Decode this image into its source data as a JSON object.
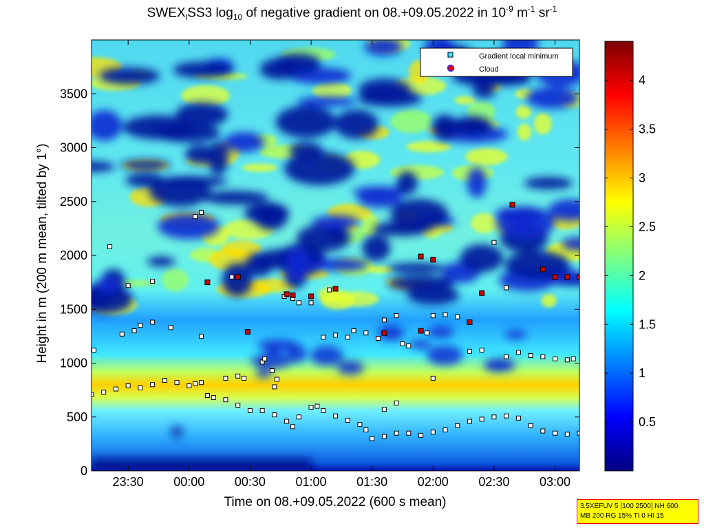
{
  "title": {
    "prefix": "SWEX",
    "sub1": "l",
    "mid1": "SS3 log",
    "sub2": "10",
    "mid2": " of negative gradient on 08.+09.05.2022 in 10",
    "sup1": "-9",
    "mid3": " m",
    "sup2": "-1",
    "mid4": " sr",
    "sup3": "-1"
  },
  "info_box": {
    "line1": "3.5XEFUV 5 [100 2500] NH 600",
    "line2": "MB 200 RG 15% TI 0 HI 15"
  },
  "colors": {
    "background_low": "#00008f",
    "gradient_min_marker": "#ffffff",
    "cloud_marker": "#cc0000",
    "colormap": "jet",
    "info_box_bg": "#ffff00",
    "info_box_border": "#ff0000"
  },
  "chart_data": {
    "type": "heatmap",
    "xlabel": "Time on 08.+09.05.2022 (600 s mean)",
    "ylabel": "Height in m (200 m mean, tilted by 1°)",
    "x_unit": "hours since 00:00 on 09.05.2022",
    "x_range": [
      -0.8,
      3.2
    ],
    "x_ticks": [
      {
        "value": -0.5,
        "label": "23:30"
      },
      {
        "value": 0.0,
        "label": "00:00"
      },
      {
        "value": 0.5,
        "label": "00:30"
      },
      {
        "value": 1.0,
        "label": "01:00"
      },
      {
        "value": 1.5,
        "label": "01:30"
      },
      {
        "value": 2.0,
        "label": "02:00"
      },
      {
        "value": 2.5,
        "label": "02:30"
      },
      {
        "value": 3.0,
        "label": "03:00"
      }
    ],
    "ylim": [
      0,
      4000
    ],
    "y_ticks": [
      0,
      500,
      1000,
      1500,
      2000,
      2500,
      3000,
      3500
    ],
    "colorbar": {
      "range": [
        0,
        4.4
      ],
      "ticks": [
        0.5,
        1,
        1.5,
        2,
        2.5,
        3,
        3.5,
        4
      ]
    },
    "legend": {
      "placement": "top-right",
      "entries": [
        {
          "label": "Gradient local minimum",
          "marker": "square"
        },
        {
          "label": "Cloud",
          "marker": "circle"
        }
      ]
    },
    "series": [
      {
        "name": "Gradient local minimum",
        "description": "main boundary layer trace",
        "points": [
          [
            -0.8,
            710
          ],
          [
            -0.7,
            730
          ],
          [
            -0.6,
            760
          ],
          [
            -0.5,
            790
          ],
          [
            -0.4,
            770
          ],
          [
            -0.3,
            800
          ],
          [
            -0.2,
            840
          ],
          [
            -0.1,
            820
          ],
          [
            0.0,
            790
          ],
          [
            0.05,
            810
          ],
          [
            0.1,
            820
          ],
          [
            0.15,
            700
          ],
          [
            0.2,
            680
          ],
          [
            0.3,
            660
          ],
          [
            0.4,
            610
          ],
          [
            0.5,
            560
          ],
          [
            0.6,
            560
          ],
          [
            0.7,
            520
          ],
          [
            0.8,
            460
          ],
          [
            0.85,
            410
          ],
          [
            0.9,
            500
          ],
          [
            1.0,
            590
          ],
          [
            1.05,
            600
          ],
          [
            1.1,
            560
          ],
          [
            1.2,
            510
          ],
          [
            1.3,
            470
          ],
          [
            1.4,
            430
          ],
          [
            1.45,
            380
          ],
          [
            1.5,
            300
          ],
          [
            1.6,
            320
          ],
          [
            1.7,
            350
          ],
          [
            1.8,
            350
          ],
          [
            1.9,
            330
          ],
          [
            2.0,
            360
          ],
          [
            2.1,
            380
          ],
          [
            2.2,
            420
          ],
          [
            2.3,
            460
          ],
          [
            2.4,
            480
          ],
          [
            2.5,
            500
          ],
          [
            2.6,
            510
          ],
          [
            2.7,
            490
          ],
          [
            2.8,
            420
          ],
          [
            2.9,
            370
          ],
          [
            3.0,
            350
          ],
          [
            3.1,
            340
          ],
          [
            3.2,
            350
          ]
        ]
      },
      {
        "name": "Gradient local minimum",
        "description": "upper layer points",
        "points": [
          [
            -0.78,
            1120
          ],
          [
            -0.55,
            1270
          ],
          [
            -0.45,
            1300
          ],
          [
            -0.4,
            1350
          ],
          [
            -0.3,
            1380
          ],
          [
            -0.15,
            1330
          ],
          [
            0.1,
            1250
          ],
          [
            0.3,
            860
          ],
          [
            0.4,
            880
          ],
          [
            0.45,
            860
          ],
          [
            0.6,
            1010
          ],
          [
            0.62,
            1040
          ],
          [
            0.68,
            930
          ],
          [
            0.72,
            850
          ],
          [
            0.7,
            780
          ],
          [
            0.78,
            1620
          ],
          [
            0.85,
            1600
          ],
          [
            0.9,
            1560
          ],
          [
            1.0,
            1560
          ],
          [
            1.1,
            1240
          ],
          [
            1.2,
            1260
          ],
          [
            1.3,
            1240
          ],
          [
            1.35,
            1300
          ],
          [
            1.45,
            1280
          ],
          [
            1.55,
            1230
          ],
          [
            1.7,
            1440
          ],
          [
            1.75,
            1180
          ],
          [
            1.8,
            1160
          ],
          [
            1.95,
            1280
          ],
          [
            2.0,
            1440
          ],
          [
            2.1,
            1450
          ],
          [
            2.2,
            1430
          ],
          [
            2.3,
            1110
          ],
          [
            2.4,
            1120
          ],
          [
            2.6,
            1060
          ],
          [
            2.7,
            1100
          ],
          [
            2.8,
            1070
          ],
          [
            2.9,
            1060
          ],
          [
            3.0,
            1040
          ],
          [
            3.1,
            1030
          ],
          [
            3.15,
            1040
          ],
          [
            -0.65,
            2080
          ],
          [
            -0.5,
            1720
          ],
          [
            -0.3,
            1760
          ],
          [
            0.05,
            2360
          ],
          [
            0.1,
            2400
          ],
          [
            0.35,
            1800
          ],
          [
            1.15,
            1680
          ],
          [
            2.5,
            2120
          ],
          [
            2.6,
            1700
          ],
          [
            1.6,
            570
          ],
          [
            1.7,
            630
          ],
          [
            2.0,
            860
          ],
          [
            1.6,
            1400
          ]
        ]
      },
      {
        "name": "Cloud",
        "points": [
          [
            0.15,
            1750
          ],
          [
            0.4,
            1800
          ],
          [
            0.48,
            1290
          ],
          [
            0.8,
            1640
          ],
          [
            0.85,
            1630
          ],
          [
            1.0,
            1620
          ],
          [
            1.2,
            1690
          ],
          [
            1.6,
            1280
          ],
          [
            1.9,
            1300
          ],
          [
            1.9,
            1990
          ],
          [
            2.0,
            1960
          ],
          [
            2.3,
            1380
          ],
          [
            2.4,
            1650
          ],
          [
            2.65,
            2470
          ],
          [
            2.9,
            1870
          ],
          [
            3.0,
            1800
          ],
          [
            3.1,
            1800
          ],
          [
            3.2,
            1800
          ]
        ]
      }
    ]
  }
}
